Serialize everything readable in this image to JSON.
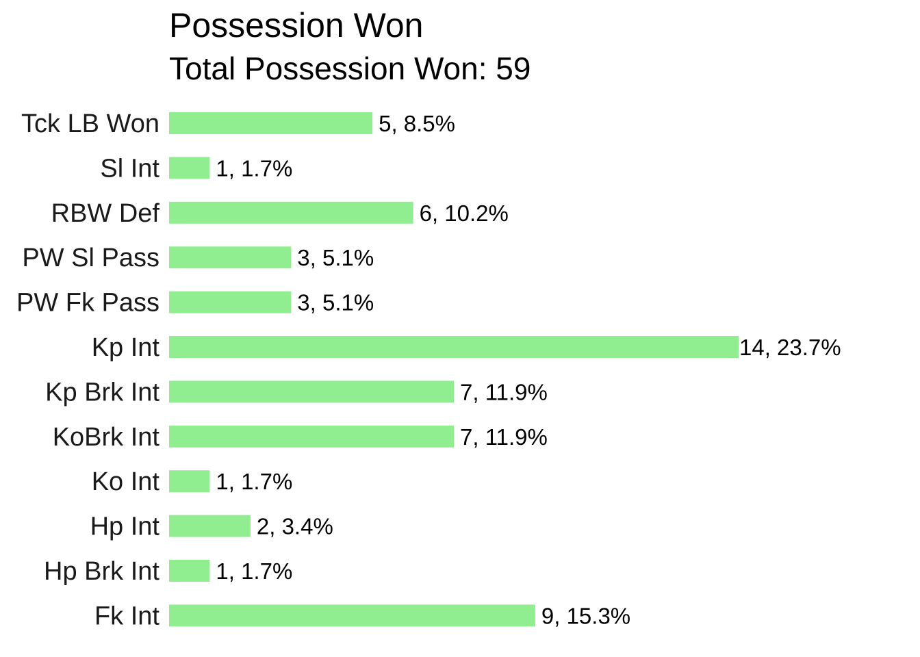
{
  "chart_data": {
    "type": "bar",
    "orientation": "horizontal",
    "title": "Possession Won",
    "subtitle": "Total Possession Won: 59",
    "categories": [
      "Tck LB Won",
      "Sl Int",
      "RBW Def",
      "PW Sl Pass",
      "PW Fk Pass",
      "Kp Int",
      "Kp Brk Int",
      "KoBrk Int",
      "Ko Int",
      "Hp Int",
      "Hp Brk Int",
      "Fk Int"
    ],
    "values": [
      5,
      1,
      6,
      3,
      3,
      14,
      7,
      7,
      1,
      2,
      1,
      9
    ],
    "data_labels": [
      "5, 8.5%",
      "1, 1.7%",
      "6, 10.2%",
      "3, 5.1%",
      "3, 5.1%",
      "14, 23.7%",
      "7, 11.9%",
      "7, 11.9%",
      "1, 1.7%",
      "2, 3.4%",
      "1, 1.7%",
      "9, 15.3%"
    ],
    "xlim": [
      0,
      14
    ],
    "grid": false,
    "legend": "none",
    "bar_color": "#90EE90"
  }
}
